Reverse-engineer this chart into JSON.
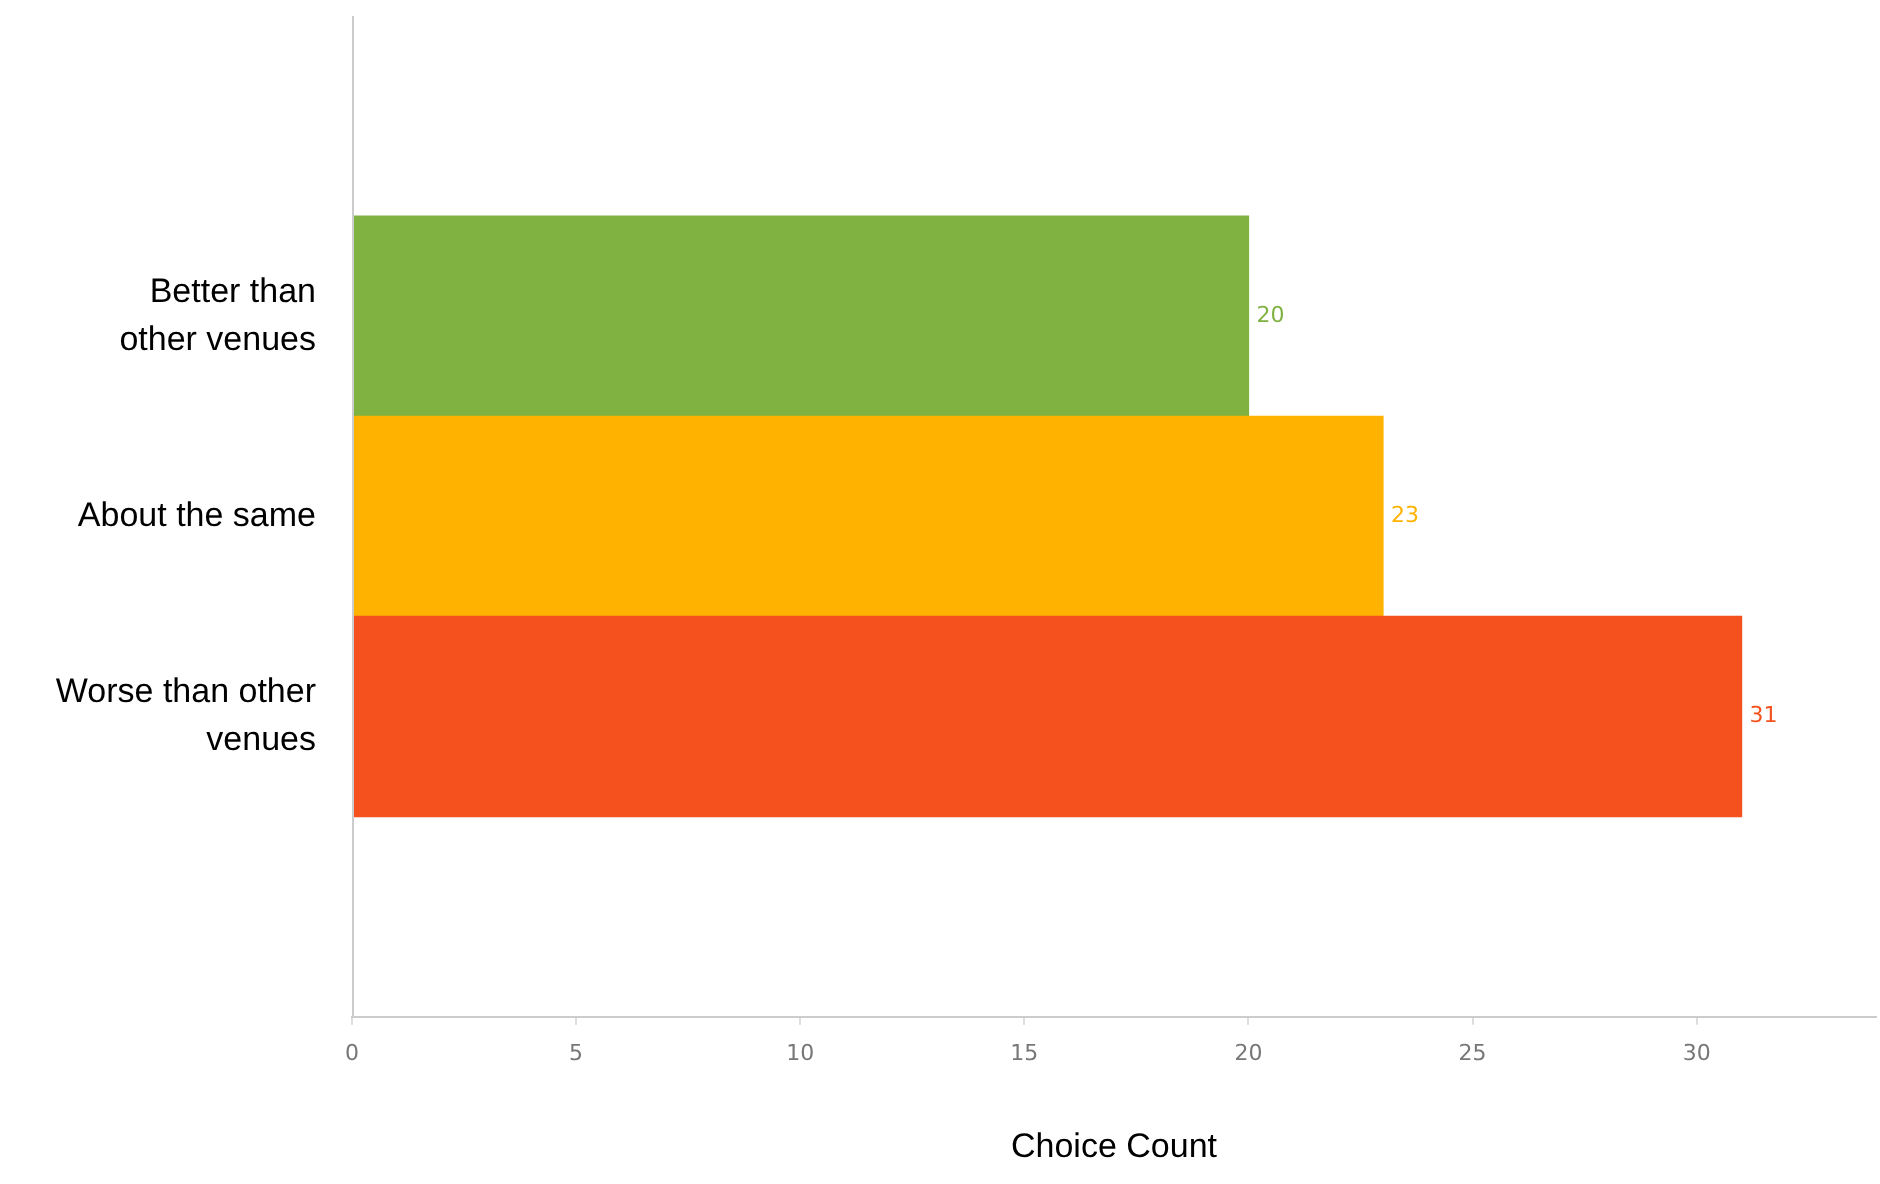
{
  "chart_data": {
    "type": "bar",
    "orientation": "horizontal",
    "xlabel": "Choice Count",
    "categories": [
      "Better than other venues",
      "About the same",
      "Worse than other venues"
    ],
    "values": [
      20,
      23,
      31
    ],
    "colors": [
      "#7fb241",
      "#ffb300",
      "#f4511e"
    ],
    "xlim": [
      0,
      34
    ],
    "xticks": [
      0,
      5,
      10,
      15,
      20,
      25,
      30
    ],
    "grid": false,
    "legend": false,
    "data_labels": true
  }
}
